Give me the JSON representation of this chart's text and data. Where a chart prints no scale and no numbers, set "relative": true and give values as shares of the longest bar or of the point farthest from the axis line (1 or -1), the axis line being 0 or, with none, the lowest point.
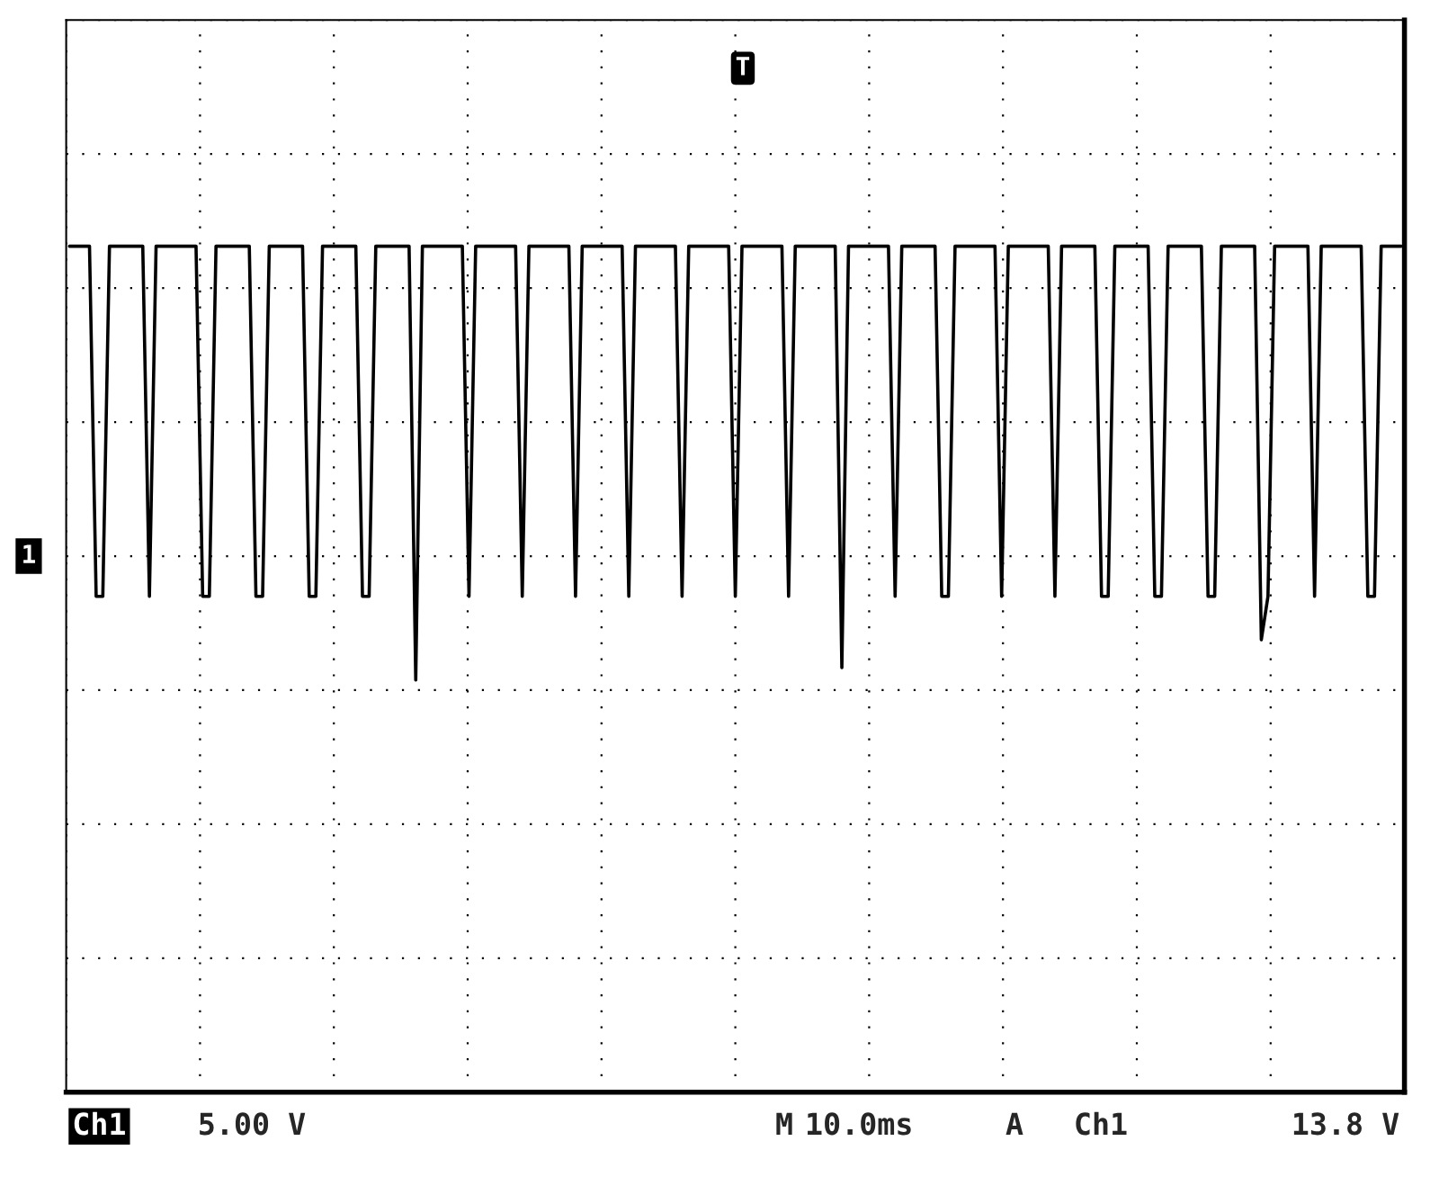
{
  "chart_data": {
    "type": "line",
    "relative": true,
    "categories": [
      null,
      null,
      null,
      null,
      null,
      null,
      null,
      null,
      null,
      null,
      null,
      null,
      null,
      null,
      null,
      null,
      null,
      null,
      null,
      null,
      null,
      null,
      null,
      null,
      null,
      null,
      null,
      null,
      null,
      null,
      null,
      null,
      null,
      null,
      null,
      null,
      null,
      null,
      null,
      null,
      null,
      null,
      null,
      null,
      null,
      null,
      null,
      null,
      null,
      null,
      null,
      null,
      null,
      null,
      null,
      null,
      null,
      null,
      null,
      null,
      null,
      null,
      null,
      null,
      null,
      null,
      null,
      null,
      null,
      null,
      null,
      null,
      null,
      null,
      null,
      null,
      null,
      null,
      null,
      null,
      null,
      null,
      null,
      null,
      null,
      null,
      null,
      null,
      null,
      null,
      null,
      null,
      null,
      null,
      null,
      null,
      null,
      null,
      null,
      null,
      null,
      null,
      null,
      null,
      null,
      null,
      null,
      null,
      null,
      null,
      null,
      null,
      null,
      null,
      null,
      null,
      null,
      null,
      null,
      null,
      null,
      null,
      null,
      null,
      null,
      null,
      null,
      null,
      null,
      null,
      null,
      null,
      null,
      null,
      null,
      null,
      null,
      null,
      null,
      null,
      null,
      null,
      null,
      null,
      null,
      null,
      null,
      null,
      null,
      null,
      null,
      null,
      null,
      null,
      null,
      null,
      null,
      null,
      null,
      null,
      null,
      null,
      null,
      null,
      null,
      null,
      null,
      null,
      null,
      null,
      null,
      null,
      null,
      null,
      null,
      null,
      null,
      null,
      null,
      null,
      null,
      null,
      null,
      null,
      null,
      null,
      null,
      null,
      null,
      null,
      null,
      null,
      null,
      null,
      null,
      null,
      null,
      null,
      null,
      null,
      null
    ],
    "series": [
      {
        "color": "#000000",
        "values": [
          1,
          1,
          1,
          1,
          -0.13,
          -0.13,
          1,
          1,
          1,
          1,
          1,
          1,
          -0.13,
          1,
          1,
          1,
          1,
          1,
          1,
          1,
          -0.13,
          -0.13,
          1,
          1,
          1,
          1,
          1,
          1,
          -0.13,
          -0.13,
          1,
          1,
          1,
          1,
          1,
          1,
          -0.13,
          -0.13,
          1,
          1,
          1,
          1,
          1,
          1,
          -0.13,
          -0.13,
          1,
          1,
          1,
          1,
          1,
          1,
          -0.4,
          1,
          1,
          1,
          1,
          1,
          1,
          1,
          -0.13,
          1,
          1,
          1,
          1,
          1,
          1,
          1,
          -0.13,
          1,
          1,
          1,
          1,
          1,
          1,
          1,
          -0.13,
          1,
          1,
          1,
          1,
          1,
          1,
          1,
          -0.13,
          1,
          1,
          1,
          1,
          1,
          1,
          1,
          -0.13,
          1,
          1,
          1,
          1,
          1,
          1,
          1,
          -0.13,
          1,
          1,
          1,
          1,
          1,
          1,
          1,
          -0.13,
          1,
          1,
          1,
          1,
          1,
          1,
          1,
          -0.36,
          1,
          1,
          1,
          1,
          1,
          1,
          1,
          -0.13,
          1,
          1,
          1,
          1,
          1,
          1,
          -0.13,
          -0.13,
          1,
          1,
          1,
          1,
          1,
          1,
          1,
          -0.13,
          1,
          1,
          1,
          1,
          1,
          1,
          1,
          -0.13,
          1,
          1,
          1,
          1,
          1,
          1,
          -0.13,
          -0.13,
          1,
          1,
          1,
          1,
          1,
          1,
          -0.13,
          -0.13,
          1,
          1,
          1,
          1,
          1,
          1,
          -0.13,
          -0.13,
          1,
          1,
          1,
          1,
          1,
          1,
          -0.27,
          -0.13,
          1,
          1,
          1,
          1,
          1,
          1,
          -0.13,
          1,
          1,
          1,
          1,
          1,
          1,
          1,
          -0.13,
          -0.13,
          1,
          1,
          1,
          1
        ]
      }
    ],
    "grid": true,
    "marker": "none",
    "line_style": "solid",
    "annotations": [
      "T",
      "1",
      "Ch1",
      "5.00 V",
      "M",
      "10.0ms",
      "A",
      "Ch1",
      "13.8 V"
    ]
  }
}
